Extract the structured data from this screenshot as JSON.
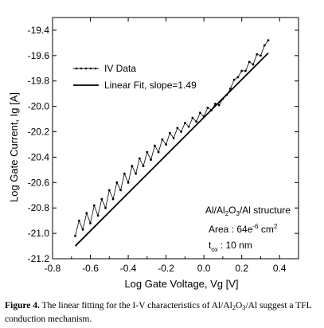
{
  "chart_data": {
    "type": "line",
    "xlabel": "Log Gate Voltage, Vg [V]",
    "ylabel": "Log Gate Current, Ig [A]",
    "xlim": [
      -0.8,
      0.5
    ],
    "ylim": [
      -21.2,
      -19.3
    ],
    "x_ticks": [
      "-0.8",
      "-0.6",
      "-0.4",
      "-0.2",
      "0.0",
      "0.2",
      "0.4"
    ],
    "y_ticks": [
      "-19.4",
      "-19.6",
      "-19.8",
      "-20.0",
      "-20.2",
      "-20.4",
      "-20.6",
      "-20.8",
      "-21.0",
      "-21.2"
    ],
    "legend_position": "top-left",
    "series": [
      {
        "name": "IV Data",
        "x": [
          -0.68,
          -0.66,
          -0.64,
          -0.62,
          -0.6,
          -0.58,
          -0.56,
          -0.54,
          -0.52,
          -0.5,
          -0.48,
          -0.46,
          -0.44,
          -0.42,
          -0.4,
          -0.38,
          -0.36,
          -0.34,
          -0.32,
          -0.3,
          -0.28,
          -0.26,
          -0.24,
          -0.22,
          -0.2,
          -0.18,
          -0.16,
          -0.14,
          -0.12,
          -0.1,
          -0.08,
          -0.06,
          -0.04,
          -0.02,
          0.0,
          0.02,
          0.04,
          0.06,
          0.08,
          0.1,
          0.12,
          0.14,
          0.16,
          0.18,
          0.2,
          0.22,
          0.24,
          0.26,
          0.28,
          0.3,
          0.32,
          0.34
        ],
        "y": [
          -21.02,
          -20.9,
          -20.97,
          -20.84,
          -20.92,
          -20.78,
          -20.86,
          -20.73,
          -20.8,
          -20.66,
          -20.73,
          -20.6,
          -20.66,
          -20.53,
          -20.6,
          -20.47,
          -20.53,
          -20.41,
          -20.47,
          -20.36,
          -20.42,
          -20.31,
          -20.36,
          -20.26,
          -20.3,
          -20.21,
          -20.25,
          -20.17,
          -20.2,
          -20.13,
          -20.16,
          -20.09,
          -20.12,
          -20.05,
          -20.08,
          -20.01,
          -20.03,
          -19.98,
          -19.99,
          -19.94,
          -19.91,
          -19.86,
          -19.79,
          -19.77,
          -19.72,
          -19.72,
          -19.65,
          -19.67,
          -19.59,
          -19.6,
          -19.52,
          -19.48
        ]
      },
      {
        "name": "Linear Fit, slope=1.49",
        "x": [
          -0.68,
          0.34
        ],
        "y": [
          -21.1,
          -19.58
        ]
      }
    ],
    "annotations": [
      "Al/Al2O3/Al structure",
      "Area : 64e-6 cm2",
      "tox: 10 nm"
    ]
  },
  "caption": {
    "label": "Figure 4.",
    "text": "The linear fitting for the I-V characteristics of Al/Al2O3/Al suggest a TFL conduction mechanism."
  },
  "annotation_parts": {
    "structure": [
      "Al/Al",
      "2",
      "O",
      "3",
      "/Al structure"
    ],
    "area": [
      "Area : 64e",
      "-6",
      " cm",
      "2"
    ],
    "tox": [
      "t",
      "ox",
      ": 10 nm"
    ]
  },
  "caption_parts": [
    "The linear fitting for the I-V characteristics of Al/Al",
    "2",
    "O",
    "3",
    "/Al suggest a TFL conduction mechanism."
  ]
}
